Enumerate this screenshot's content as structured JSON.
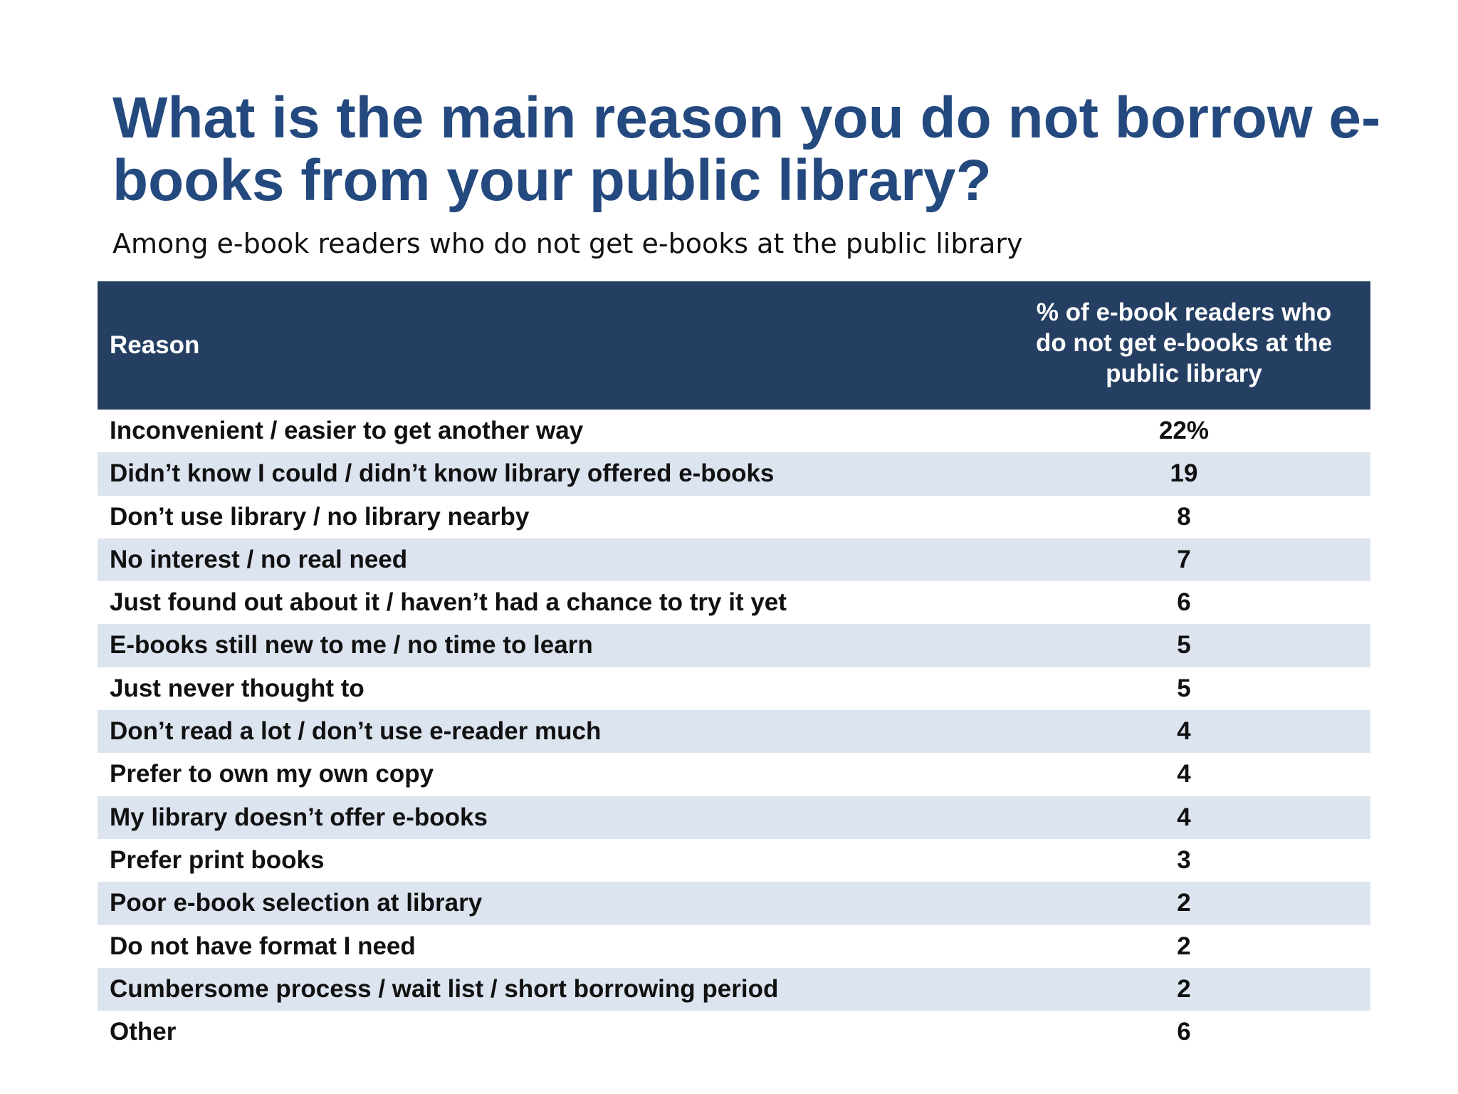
{
  "title": "What is the main reason you do not borrow e-books from your public library?",
  "subtitle": "Among e-book readers who do not get e-books at the public library",
  "colors": {
    "title": "#23497e",
    "header_bg": "#253f62",
    "header_text": "#ffffff",
    "stripe": "#dce4f0"
  },
  "chart_data": {
    "type": "table",
    "columns": [
      "Reason",
      "% of e-book readers who do not get e-books at the public library"
    ],
    "rows": [
      {
        "reason": "Inconvenient / easier to get another way",
        "value": "22%"
      },
      {
        "reason": "Didn’t know I could / didn’t know library offered e-books",
        "value": "19"
      },
      {
        "reason": "Don’t use library / no library nearby",
        "value": "8"
      },
      {
        "reason": "No interest / no real need",
        "value": "7"
      },
      {
        "reason": "Just found out about it / haven’t had a chance to try it yet",
        "value": "6"
      },
      {
        "reason": "E-books still new to me / no time to learn",
        "value": "5"
      },
      {
        "reason": "Just never thought to",
        "value": "5"
      },
      {
        "reason": "Don’t read a lot / don’t use e-reader much",
        "value": "4"
      },
      {
        "reason": "Prefer to own my own copy",
        "value": "4"
      },
      {
        "reason": "My library doesn’t offer e-books",
        "value": "4"
      },
      {
        "reason": "Prefer print books",
        "value": "3"
      },
      {
        "reason": "Poor e-book selection at library",
        "value": "2"
      },
      {
        "reason": "Do not have format I need",
        "value": "2"
      },
      {
        "reason": "Cumbersome process / wait list / short borrowing period",
        "value": "2"
      },
      {
        "reason": "Other",
        "value": "6"
      }
    ]
  }
}
